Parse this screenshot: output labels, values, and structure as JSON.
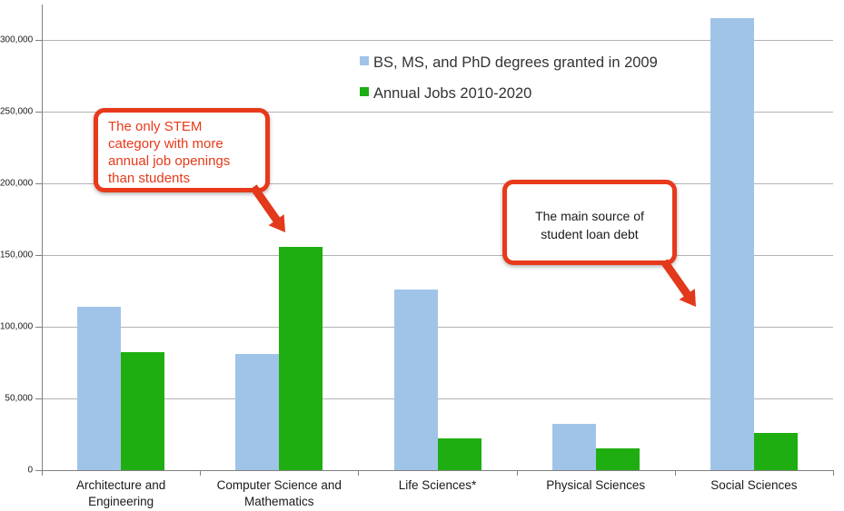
{
  "chart_data": {
    "type": "bar",
    "title": "",
    "categories": [
      "Architecture and Engineering",
      "Computer Science and Mathematics",
      "Life Sciences*",
      "Physical Sciences",
      "Social Sciences"
    ],
    "series": [
      {
        "name": "BS, MS, and PhD degrees granted in 2009",
        "key": "degrees",
        "color": "#A0C4E8",
        "values": [
          114000,
          81000,
          126000,
          32000,
          315000
        ]
      },
      {
        "name": "Annual Jobs 2010-2020",
        "key": "jobs",
        "color": "#1FAE11",
        "values": [
          82000,
          156000,
          22000,
          15000,
          26000
        ]
      }
    ],
    "xlabel": "",
    "ylabel": "",
    "ylim": [
      0,
      325000
    ],
    "yticks": [
      0,
      50000,
      100000,
      150000,
      200000,
      250000,
      300000
    ],
    "ytick_labels": [
      "0",
      "50,000",
      "100,000",
      "150,000",
      "200,000",
      "250,000",
      "300,000"
    ],
    "grid": true,
    "legend_position": "top-center"
  },
  "annotations": {
    "stem_callout": {
      "text": "The only STEM category with more annual job openings than students",
      "text_color": "#E8391A"
    },
    "loan_callout": {
      "text": "The main source of student loan debt",
      "text_color": "#1A1A1A"
    },
    "box_border_color": "#E8391A",
    "arrow_color": "#E2391B"
  },
  "colors": {
    "gridline": "#B3B3B3",
    "axis": "#808080",
    "label": "#1A1A1A",
    "background": "#FFFFFF"
  }
}
